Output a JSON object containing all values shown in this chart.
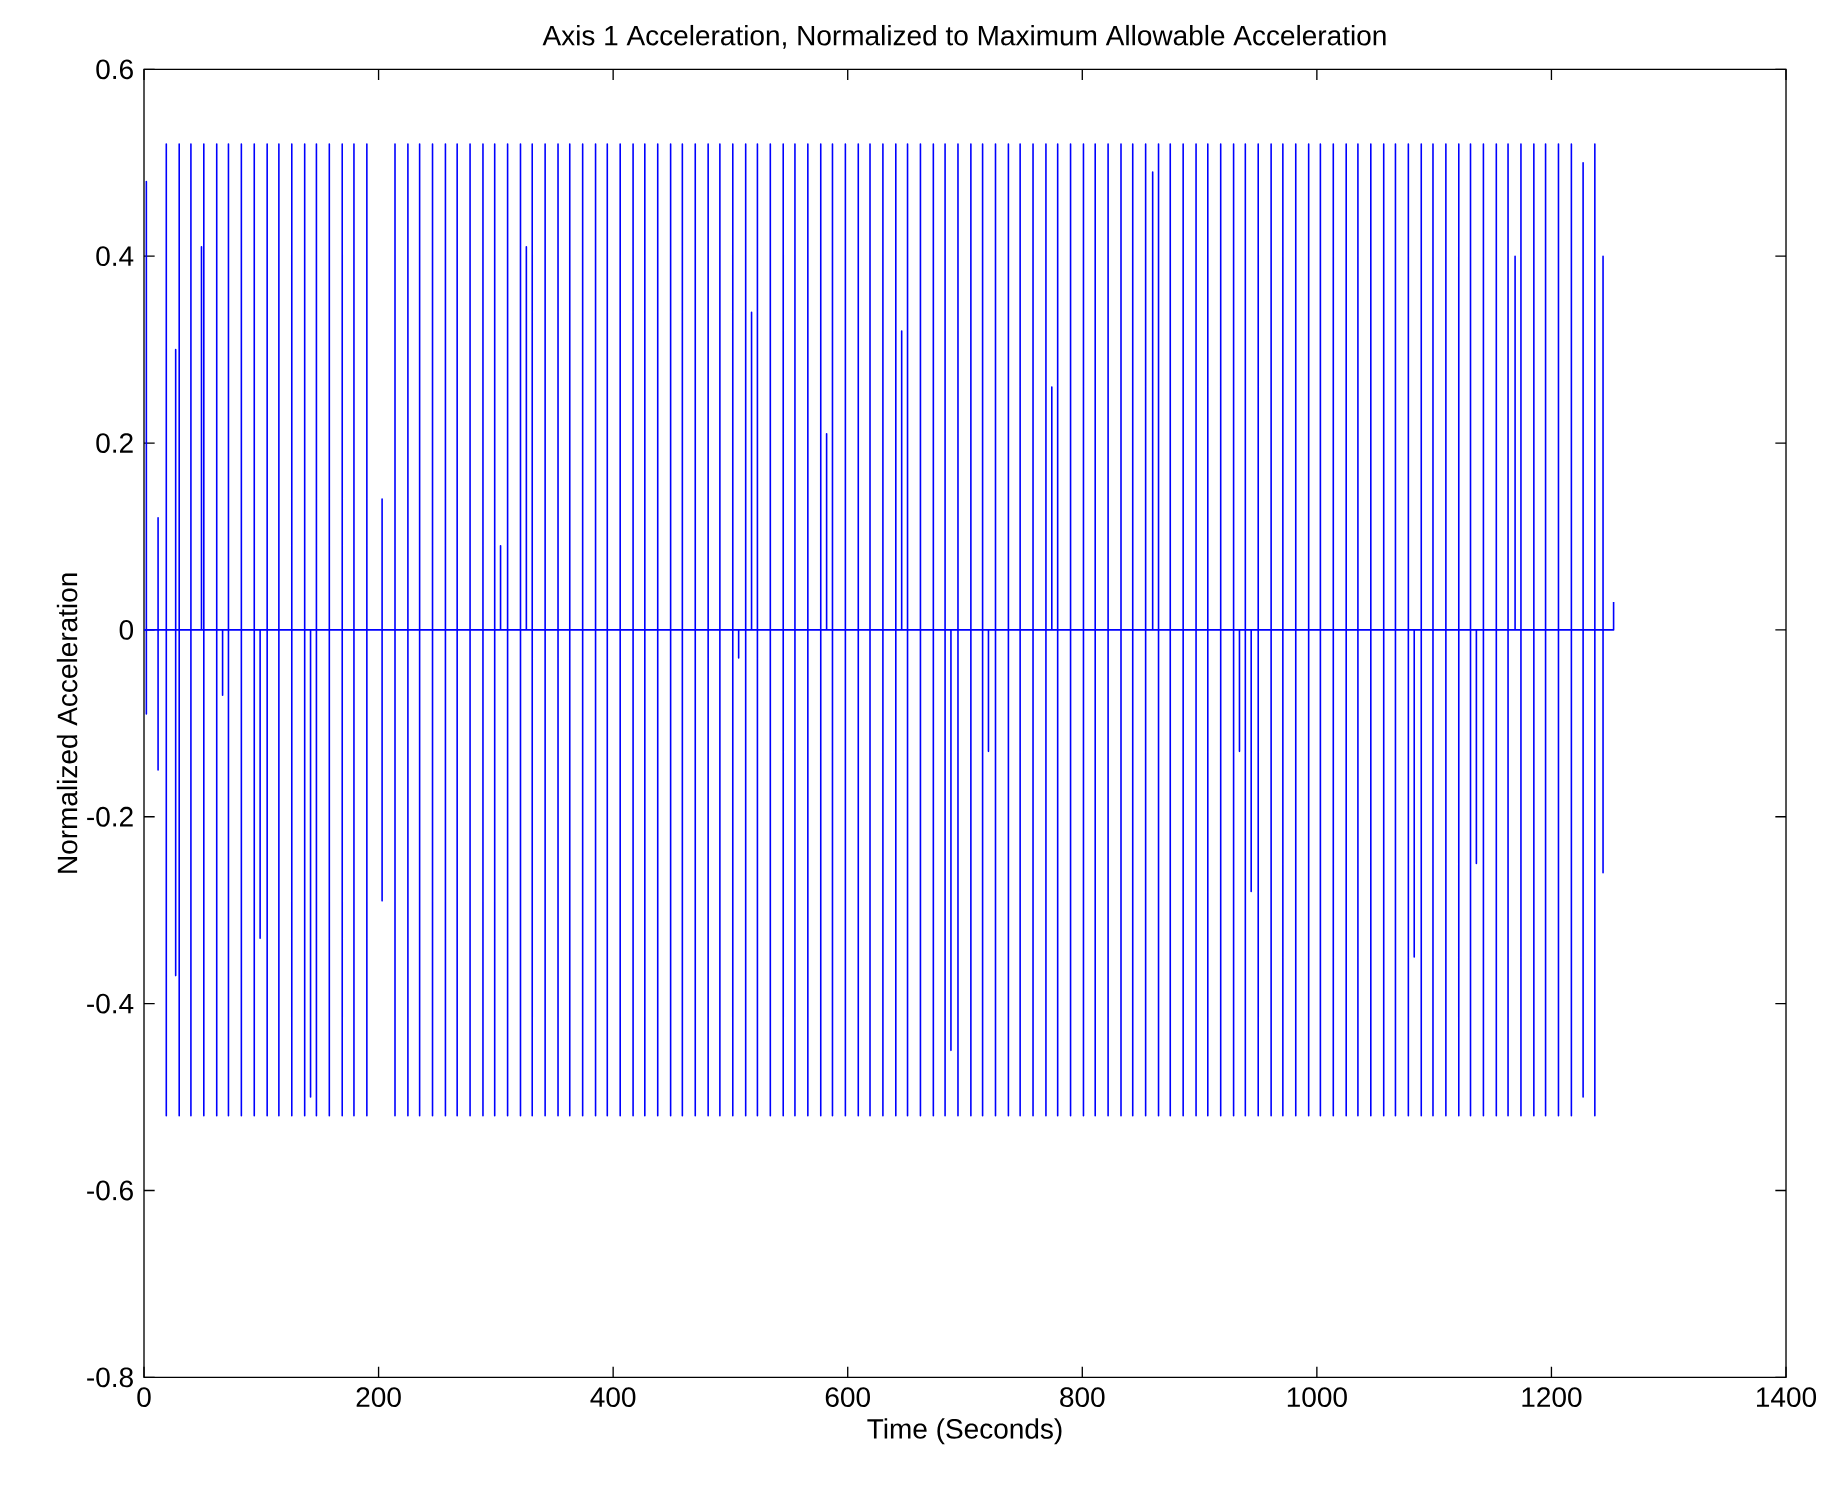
{
  "chart_data": {
    "type": "line",
    "title": "Axis 1 Acceleration, Normalized to Maximum Allowable Acceleration",
    "xlabel": "Time (Seconds)",
    "ylabel": "Normalized Acceleration",
    "xlim": [
      0,
      1400
    ],
    "ylim": [
      -0.8,
      0.6
    ],
    "xticks": [
      0,
      200,
      400,
      600,
      800,
      1000,
      1200,
      1400
    ],
    "yticks": [
      -0.8,
      -0.6,
      -0.4,
      -0.2,
      0,
      0.2,
      0.4,
      0.6
    ],
    "grid": false,
    "x": [
      0,
      2,
      2,
      2,
      2,
      12,
      12,
      12,
      12,
      19,
      19,
      19,
      19,
      27,
      27,
      27,
      27,
      30,
      30,
      30,
      30,
      40,
      40,
      40,
      40,
      49,
      49,
      49,
      51,
      51,
      51,
      51,
      62,
      62,
      62,
      62,
      67,
      67,
      67,
      72,
      72,
      72,
      72,
      83,
      83,
      83,
      83,
      94,
      94,
      94,
      94,
      99,
      99,
      99,
      105,
      105,
      105,
      105,
      115,
      115,
      115,
      115,
      126,
      126,
      126,
      126,
      137,
      137,
      137,
      137,
      142,
      142,
      142,
      147,
      147,
      147,
      147,
      158,
      158,
      158,
      158,
      169,
      169,
      169,
      169,
      179,
      179,
      179,
      179,
      190,
      190,
      190,
      190,
      203,
      203,
      203,
      203,
      214,
      214,
      214,
      214,
      225,
      225,
      225,
      225,
      235,
      235,
      235,
      235,
      246,
      246,
      246,
      246,
      257,
      257,
      257,
      257,
      267,
      267,
      267,
      267,
      278,
      278,
      278,
      278,
      289,
      289,
      289,
      289,
      299,
      299,
      299,
      299,
      304,
      304,
      304,
      310,
      310,
      310,
      310,
      321,
      321,
      321,
      321,
      326,
      326,
      326,
      331,
      331,
      331,
      331,
      342,
      342,
      342,
      342,
      353,
      353,
      353,
      353,
      363,
      363,
      363,
      363,
      374,
      374,
      374,
      374,
      385,
      385,
      385,
      385,
      395,
      395,
      395,
      395,
      406,
      406,
      406,
      406,
      417,
      417,
      417,
      417,
      427,
      427,
      427,
      427,
      438,
      438,
      438,
      438,
      449,
      449,
      449,
      449,
      459,
      459,
      459,
      459,
      470,
      470,
      470,
      470,
      481,
      481,
      481,
      481,
      491,
      491,
      491,
      491,
      502,
      502,
      502,
      502,
      507,
      507,
      507,
      513,
      513,
      513,
      513,
      518,
      518,
      518,
      523,
      523,
      523,
      523,
      534,
      534,
      534,
      534,
      545,
      545,
      545,
      545,
      555,
      555,
      555,
      555,
      566,
      566,
      566,
      566,
      577,
      577,
      577,
      577,
      582,
      582,
      582,
      587,
      587,
      587,
      587,
      598,
      598,
      598,
      598,
      609,
      609,
      609,
      609,
      619,
      619,
      619,
      619,
      630,
      630,
      630,
      630,
      641,
      641,
      641,
      641,
      646,
      646,
      646,
      651,
      651,
      651,
      651,
      662,
      662,
      662,
      662,
      673,
      673,
      673,
      673,
      683,
      683,
      683,
      683,
      688,
      688,
      688,
      694,
      694,
      694,
      694,
      705,
      705,
      705,
      705,
      715,
      715,
      715,
      715,
      720,
      720,
      720,
      726,
      726,
      726,
      726,
      737,
      737,
      737,
      737,
      747,
      747,
      747,
      747,
      758,
      758,
      758,
      758,
      769,
      769,
      769,
      769,
      774,
      774,
      774,
      779,
      779,
      779,
      779,
      790,
      790,
      790,
      790,
      801,
      801,
      801,
      801,
      811,
      811,
      811,
      811,
      822,
      822,
      822,
      822,
      833,
      833,
      833,
      833,
      843,
      843,
      843,
      843,
      854,
      854,
      854,
      854,
      860,
      860,
      860,
      865,
      865,
      865,
      865,
      875,
      875,
      875,
      875,
      886,
      886,
      886,
      886,
      897,
      897,
      897,
      897,
      907,
      907,
      907,
      907,
      918,
      918,
      918,
      918,
      929,
      929,
      929,
      929,
      934,
      934,
      934,
      939,
      939,
      939,
      939,
      944,
      944,
      944,
      950,
      950,
      950,
      950,
      961,
      961,
      961,
      961,
      971,
      971,
      971,
      971,
      982,
      982,
      982,
      982,
      993,
      993,
      993,
      993,
      1003,
      1003,
      1003,
      1003,
      1014,
      1014,
      1014,
      1014,
      1025,
      1025,
      1025,
      1025,
      1035,
      1035,
      1035,
      1035,
      1046,
      1046,
      1046,
      1046,
      1057,
      1057,
      1057,
      1057,
      1067,
      1067,
      1067,
      1067,
      1078,
      1078,
      1078,
      1078,
      1083,
      1083,
      1083,
      1089,
      1089,
      1089,
      1089,
      1099,
      1099,
      1099,
      1099,
      1110,
      1110,
      1110,
      1110,
      1121,
      1121,
      1121,
      1121,
      1131,
      1131,
      1131,
      1131,
      1136,
      1136,
      1136,
      1142,
      1142,
      1142,
      1142,
      1153,
      1153,
      1153,
      1153,
      1163,
      1163,
      1163,
      1163,
      1169,
      1169,
      1169,
      1174,
      1174,
      1174,
      1174,
      1185,
      1185,
      1185,
      1185,
      1195,
      1195,
      1195,
      1195,
      1206,
      1206,
      1206,
      1206,
      1217,
      1217,
      1217,
      1217,
      1227,
      1227,
      1227,
      1227,
      1237,
      1237,
      1237,
      1237,
      1244,
      1244,
      1244,
      1244,
      1253,
      1253
    ],
    "series": [
      {
        "color": "#0000ff",
        "values": [
          0,
          0,
          0.48,
          -0.09,
          0,
          0,
          0.12,
          -0.15,
          0,
          0,
          0.52,
          -0.52,
          0,
          0,
          0.3,
          -0.37,
          0,
          0,
          0.52,
          -0.52,
          0,
          0,
          0.52,
          -0.52,
          0,
          0,
          0.41,
          0,
          0,
          0.52,
          -0.52,
          0,
          0,
          0.52,
          -0.52,
          0,
          0,
          -0.07,
          0,
          0,
          0.52,
          -0.52,
          0,
          0,
          0.52,
          -0.52,
          0,
          0,
          0.52,
          -0.52,
          0,
          0,
          -0.33,
          0,
          0,
          0.52,
          -0.52,
          0,
          0,
          0.52,
          -0.52,
          0,
          0,
          0.52,
          -0.52,
          0,
          0,
          0.52,
          -0.52,
          0,
          0,
          -0.5,
          0,
          0,
          0.52,
          -0.52,
          0,
          0,
          0.52,
          -0.52,
          0,
          0,
          0.52,
          -0.52,
          0,
          0,
          0.52,
          -0.52,
          0,
          0,
          0.52,
          -0.52,
          0,
          0,
          0.14,
          -0.29,
          0,
          0,
          0.52,
          -0.52,
          0,
          0,
          0.52,
          -0.52,
          0,
          0,
          0.52,
          -0.52,
          0,
          0,
          0.52,
          -0.52,
          0,
          0,
          0.52,
          -0.52,
          0,
          0,
          0.52,
          -0.52,
          0,
          0,
          0.52,
          -0.52,
          0,
          0,
          0.52,
          -0.52,
          0,
          0,
          0.52,
          -0.52,
          0,
          0,
          0.09,
          0,
          0,
          0.52,
          -0.52,
          0,
          0,
          0.52,
          -0.52,
          0,
          0,
          0.41,
          0,
          0,
          0.52,
          -0.52,
          0,
          0,
          0.52,
          -0.52,
          0,
          0,
          0.52,
          -0.52,
          0,
          0,
          0.52,
          -0.52,
          0,
          0,
          0.52,
          -0.52,
          0,
          0,
          0.52,
          -0.52,
          0,
          0,
          0.52,
          -0.52,
          0,
          0,
          0.52,
          -0.52,
          0,
          0,
          0.52,
          -0.52,
          0,
          0,
          0.52,
          -0.52,
          0,
          0,
          0.52,
          -0.52,
          0,
          0,
          0.52,
          -0.52,
          0,
          0,
          0.52,
          -0.52,
          0,
          0,
          0.52,
          -0.52,
          0,
          0,
          0.52,
          -0.52,
          0,
          0,
          0.52,
          -0.52,
          0,
          0,
          0.52,
          -0.52,
          0,
          0,
          -0.03,
          0,
          0,
          0.52,
          -0.52,
          0,
          0,
          0.34,
          0,
          0,
          0.52,
          -0.52,
          0,
          0,
          0.52,
          -0.52,
          0,
          0,
          0.52,
          -0.52,
          0,
          0,
          0.52,
          -0.52,
          0,
          0,
          0.52,
          -0.52,
          0,
          0,
          0.52,
          -0.52,
          0,
          0,
          0.21,
          0,
          0,
          0.52,
          -0.52,
          0,
          0,
          0.52,
          -0.52,
          0,
          0,
          0.52,
          -0.52,
          0,
          0,
          0.52,
          -0.52,
          0,
          0,
          0.52,
          -0.52,
          0,
          0,
          0.52,
          -0.52,
          0,
          0,
          0.32,
          0,
          0,
          0.52,
          -0.52,
          0,
          0,
          0.52,
          -0.52,
          0,
          0,
          0.52,
          -0.52,
          0,
          0,
          0.52,
          -0.52,
          0,
          0,
          -0.45,
          0,
          0,
          0.52,
          -0.52,
          0,
          0,
          0.52,
          -0.52,
          0,
          0,
          0.52,
          -0.52,
          0,
          0,
          -0.13,
          0,
          0,
          0.52,
          -0.52,
          0,
          0,
          0.52,
          -0.52,
          0,
          0,
          0.52,
          -0.52,
          0,
          0,
          0.52,
          -0.52,
          0,
          0,
          0.52,
          -0.52,
          0,
          0,
          0.26,
          0,
          0,
          0.52,
          -0.52,
          0,
          0,
          0.52,
          -0.52,
          0,
          0,
          0.52,
          -0.52,
          0,
          0,
          0.52,
          -0.52,
          0,
          0,
          0.52,
          -0.52,
          0,
          0,
          0.52,
          -0.52,
          0,
          0,
          0.52,
          -0.52,
          0,
          0,
          0.52,
          -0.52,
          0,
          0,
          0.49,
          0,
          0,
          0.52,
          -0.52,
          0,
          0,
          0.52,
          -0.52,
          0,
          0,
          0.52,
          -0.52,
          0,
          0,
          0.52,
          -0.52,
          0,
          0,
          0.52,
          -0.52,
          0,
          0,
          0.52,
          -0.52,
          0,
          0,
          0.52,
          -0.52,
          0,
          0,
          -0.13,
          0,
          0,
          0.52,
          -0.52,
          0,
          0,
          -0.28,
          0,
          0,
          0.52,
          -0.52,
          0,
          0,
          0.52,
          -0.52,
          0,
          0,
          0.52,
          -0.52,
          0,
          0,
          0.52,
          -0.52,
          0,
          0,
          0.52,
          -0.52,
          0,
          0,
          0.52,
          -0.52,
          0,
          0,
          0.52,
          -0.52,
          0,
          0,
          0.52,
          -0.52,
          0,
          0,
          0.52,
          -0.52,
          0,
          0,
          0.52,
          -0.52,
          0,
          0,
          0.52,
          -0.52,
          0,
          0,
          0.52,
          -0.52,
          0,
          0,
          0.52,
          -0.52,
          0,
          0,
          -0.35,
          0,
          0,
          0.52,
          -0.52,
          0,
          0,
          0.52,
          -0.52,
          0,
          0,
          0.52,
          -0.52,
          0,
          0,
          0.52,
          -0.52,
          0,
          0,
          0.52,
          -0.52,
          0,
          0,
          -0.25,
          0,
          0,
          0.52,
          -0.52,
          0,
          0,
          0.52,
          -0.52,
          0,
          0,
          0.52,
          -0.52,
          0,
          0,
          0.4,
          0,
          0,
          0.52,
          -0.52,
          0,
          0,
          0.52,
          -0.52,
          0,
          0,
          0.52,
          -0.52,
          0,
          0,
          0.52,
          -0.52,
          0,
          0,
          0.52,
          -0.52,
          0,
          0,
          0.5,
          -0.5,
          0,
          0,
          0.52,
          -0.52,
          0,
          0,
          0.4,
          -0.26,
          0,
          0,
          0.03
        ]
      }
    ]
  }
}
